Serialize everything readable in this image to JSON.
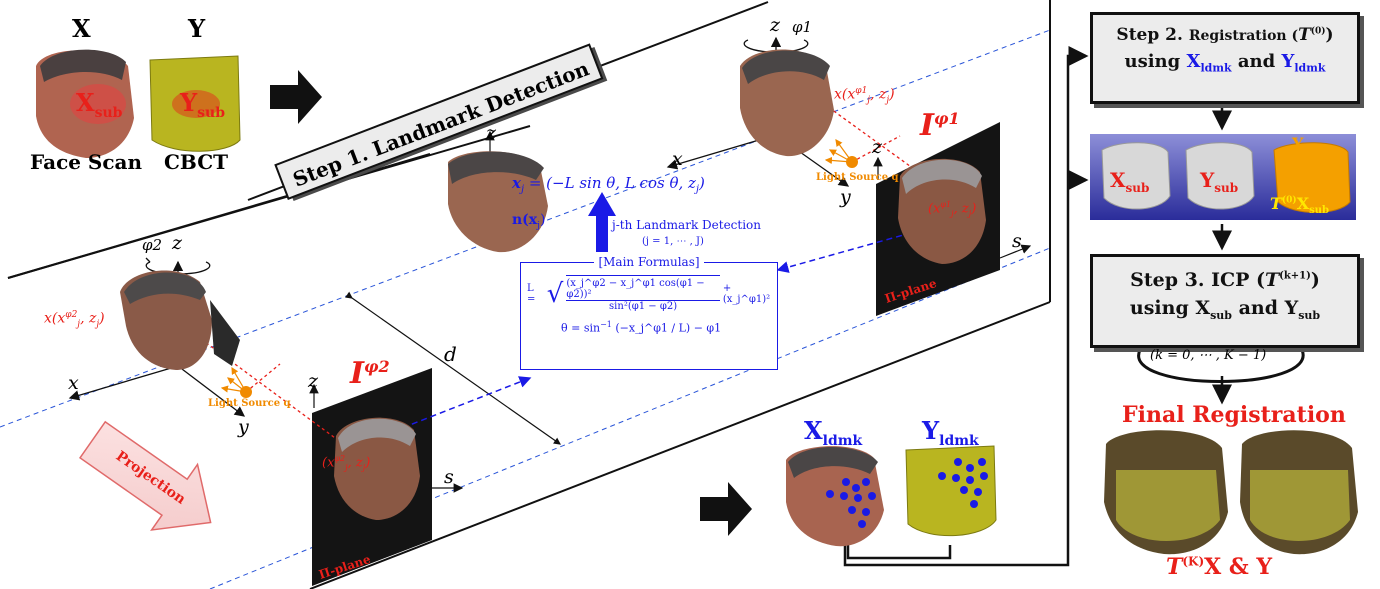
{
  "inputs": {
    "x_label": "X",
    "y_label": "Y",
    "x_sub": "X",
    "x_sub_subscript": "sub",
    "y_sub": "Y",
    "y_sub_subscript": "sub",
    "face_scan": "Face Scan",
    "cbct": "CBCT"
  },
  "step1": {
    "title": "Step 1. Landmark Detection"
  },
  "camera_left": {
    "phi": "φ2",
    "z": "z",
    "x": "x",
    "y": "y",
    "point": "x(x",
    "point_sup": "φ2",
    "point_sub": "j",
    "point_tail": ", z",
    "point_tail_sub": "j",
    "point_close": ")",
    "light": "Light Source q"
  },
  "camera_right": {
    "phi": "φ1",
    "z": "z",
    "x": "x",
    "y": "y",
    "point": "x(x",
    "point_sup": "φ1",
    "point_sub": "j",
    "point_tail": ", z",
    "point_tail_sub": "j",
    "point_close": ")",
    "light": "Light Source q"
  },
  "center_head": {
    "z": "z",
    "xj": "x",
    "xj_sub": "j",
    "eq": "= (−L sin θ, L cos θ, z",
    "eq_sub": "j",
    "eq_close": ")",
    "normal": "n(x",
    "normal_sub": "j",
    "normal_close": ")"
  },
  "detection": {
    "title": "j-th Landmark Detection",
    "range": "(j = 1, ⋯ , J)"
  },
  "formulas": {
    "title": "[Main Formulas]",
    "L_lhs": "L =",
    "L_num": "(x",
    "L_expr": "(xj^φ2 − xj^φ1 cos(φ1 − φ2))² / sin²(φ1 − φ2) + (xj^φ1)²",
    "L_numerator": "(x_j^φ2 − x_j^φ1 cos(φ1 − φ2))²",
    "L_denominator": "sin²(φ1 − φ2)",
    "L_plus": "+ (x_j^φ1)²",
    "theta": "θ = sin",
    "theta_exp": "−1",
    "theta_arg": "(−x_j^φ1 / L) − φ1"
  },
  "planes": {
    "left_I": "I",
    "left_sup": "φ2",
    "right_I": "I",
    "right_sup": "φ1",
    "pi_label": "Π-plane",
    "left_z": "z",
    "left_s": "s",
    "right_z": "z",
    "right_s": "s",
    "left_pt": "(x",
    "left_pt_sup": "φ2",
    "left_pt_sub": "j",
    "left_pt_tail": ", z",
    "left_pt_tail_sub": "j",
    "left_pt_close": ")",
    "right_pt": "(x",
    "right_pt_sup": "φ1",
    "right_pt_sub": "j",
    "right_pt_tail": ", z",
    "right_pt_tail_sub": "j",
    "right_pt_close": ")",
    "d": "d"
  },
  "projection": "Projection",
  "landmarks": {
    "x": "X",
    "x_sub": "ldmk",
    "y": "Y",
    "y_sub": "ldmk"
  },
  "step2": {
    "prefix": "Step 2.",
    "registration": "Registration (",
    "t": "T",
    "t_sup": "(0)",
    "close": ")",
    "using": "using",
    "x": "X",
    "x_sub": "ldmk",
    "and": "and",
    "y": "Y",
    "y_sub": "ldmk"
  },
  "registration_strip": {
    "x": "X",
    "x_sub": "sub",
    "y": "Y",
    "y_sub": "sub",
    "y_right": "Y",
    "y_right_sub": "sub",
    "t": "T",
    "t_sup": "(0)",
    "x_right": "X",
    "x_right_sub": "sub"
  },
  "step3": {
    "prefix": "Step 3. ICP (",
    "t": "T",
    "t_sup": "(k+1)",
    "close": ")",
    "using": "using X",
    "x_sub": "sub",
    "and": " and Y",
    "y_sub": "sub"
  },
  "loop": "(k = 0, ⋯ , K − 1)",
  "final": {
    "title": "Final Registration",
    "t": "T",
    "t_sup": "(K)",
    "rest": "X & Y"
  },
  "colors": {
    "red": "#e8201a",
    "blue": "#1a1ae6",
    "orange": "#f08a00",
    "gray_box": "#ececec"
  }
}
